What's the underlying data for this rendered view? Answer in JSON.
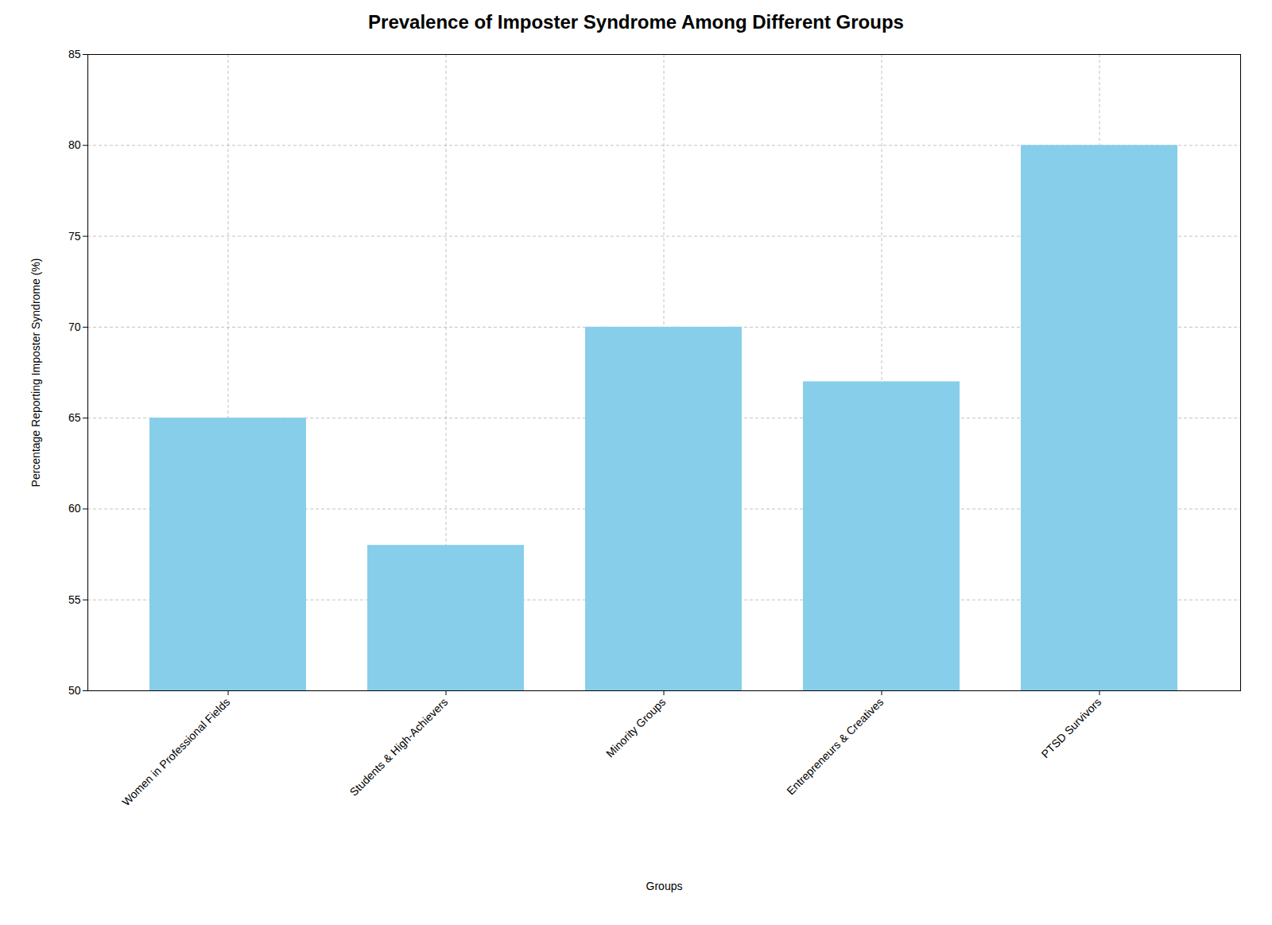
{
  "chart_data": {
    "type": "bar",
    "title": "Prevalence of Imposter Syndrome Among Different Groups",
    "xlabel": "Groups",
    "ylabel": "Percentage Reporting Imposter Syndrome (%)",
    "categories": [
      "Women in Professional Fields",
      "Students & High-Achievers",
      "Minority Groups",
      "Entrepreneurs & Creatives",
      "PTSD Survivors"
    ],
    "values": [
      65,
      58,
      70,
      67,
      80
    ],
    "color": "#87CEEB",
    "ylim": [
      50,
      85
    ],
    "yticks": [
      50,
      55,
      60,
      65,
      70,
      75,
      80,
      85
    ],
    "grid": true
  }
}
